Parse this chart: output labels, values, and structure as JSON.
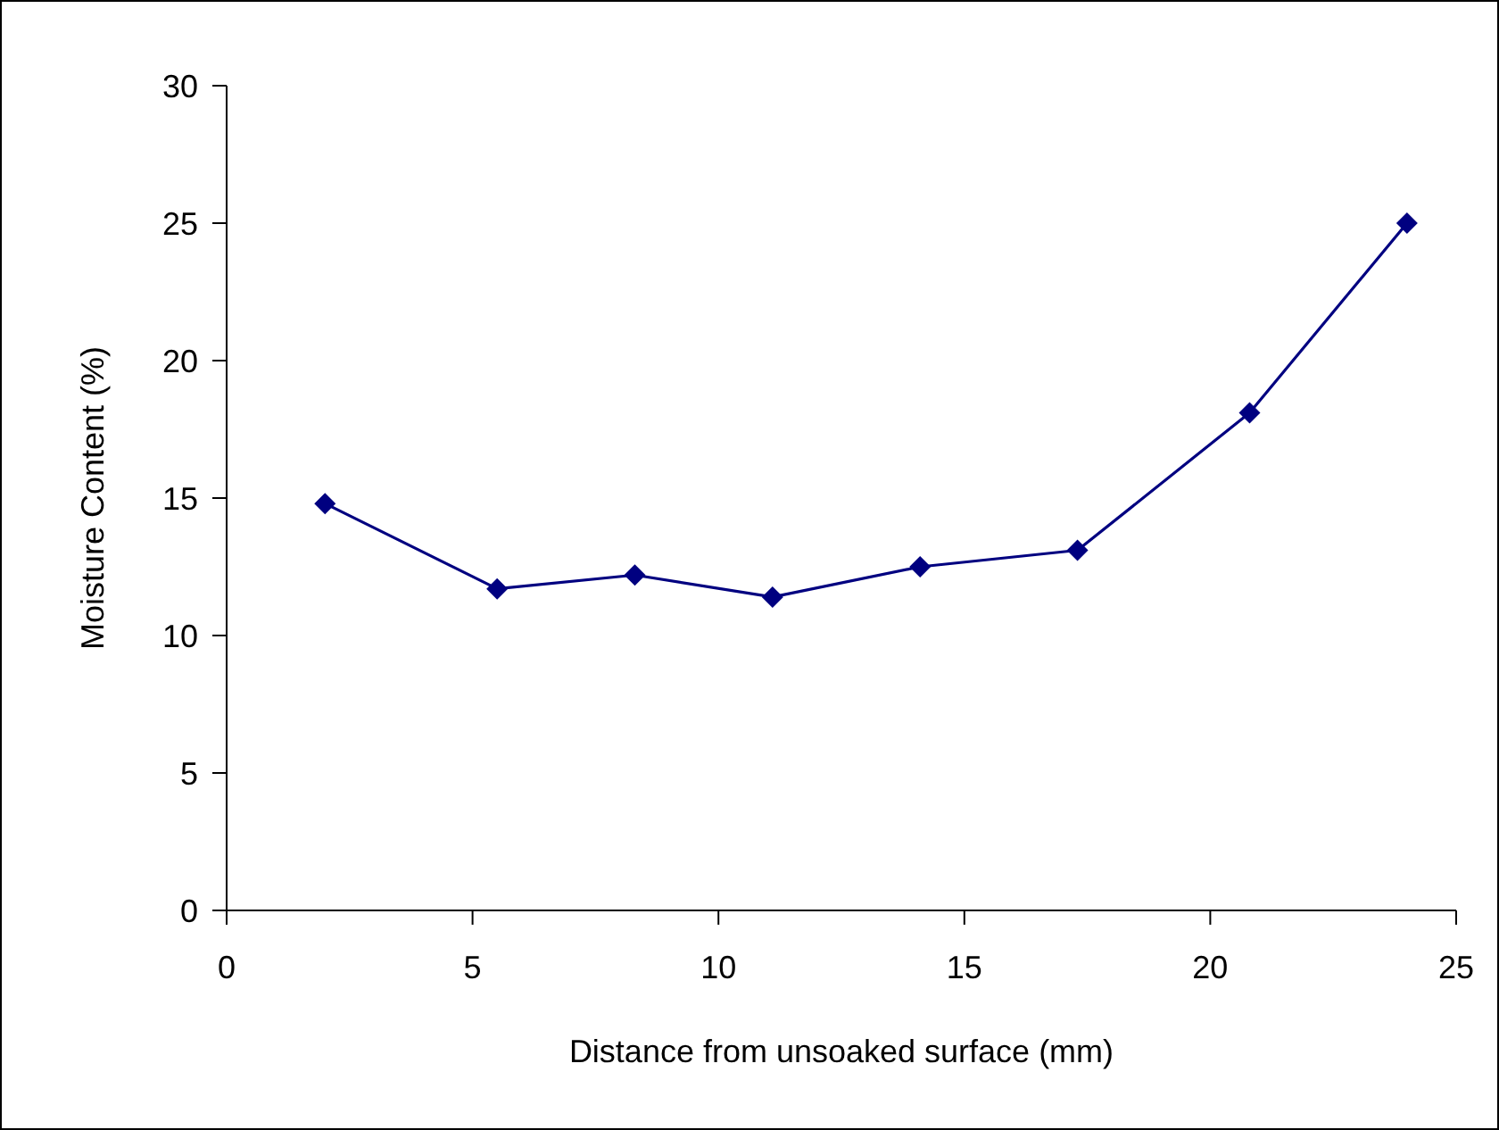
{
  "chart_data": {
    "type": "line",
    "xlabel": "Distance from unsoaked surface (mm)",
    "ylabel": "Moisture Content (%)",
    "x": [
      2.0,
      5.5,
      8.3,
      11.1,
      14.1,
      17.3,
      20.8,
      24.0
    ],
    "series": [
      {
        "color": "#000080",
        "values": [
          14.8,
          11.7,
          12.2,
          11.4,
          12.5,
          13.1,
          18.1,
          25.0
        ]
      }
    ],
    "xlim": [
      0,
      25
    ],
    "xticks": [
      0,
      5,
      10,
      15,
      20,
      25
    ],
    "ylim": [
      0,
      30
    ],
    "yticks": [
      0,
      5,
      10,
      15,
      20,
      25,
      30
    ],
    "marker": "diamond",
    "line_style": "solid"
  }
}
